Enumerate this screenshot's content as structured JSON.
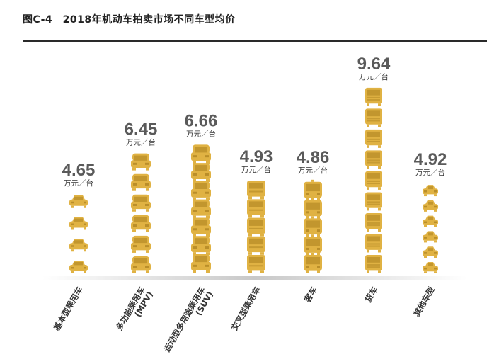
{
  "title": "图C-4　2018年机动车拍卖市场不同车型均价",
  "colors": {
    "icon": "#E0B243",
    "icon_dark": "#A97F1E",
    "value": "#5a5a5a",
    "baseline": "#c8c8c8"
  },
  "chart_data": {
    "type": "bar",
    "title": "图C-4　2018年机动车拍卖市场不同车型均价",
    "unit_label": "万元／台",
    "categories": [
      "基本型乘用车",
      "多功能乘用车(MPV)",
      "运动型多用途乘用车(SUV)",
      "交叉型乘用车",
      "客车",
      "货车",
      "其他车型"
    ],
    "category_lines": [
      [
        "基本型乘用车"
      ],
      [
        "多功能乘用车",
        "(MPV)"
      ],
      [
        "运动型多用途乘用车",
        "(SUV)"
      ],
      [
        "交叉型乘用车"
      ],
      [
        "客车"
      ],
      [
        "货车"
      ],
      [
        "其他车型"
      ]
    ],
    "value_labels": [
      "4.65",
      "6.45",
      "6.66",
      "4.93",
      "4.86",
      "9.64",
      "4.92"
    ],
    "values": [
      4.65,
      6.45,
      6.66,
      4.93,
      4.86,
      9.64,
      4.92
    ],
    "icon_types": [
      "sedan",
      "mpv",
      "suv",
      "van",
      "bus",
      "truck",
      "small-car"
    ],
    "icon_names": [
      "sedan-icon",
      "mpv-icon",
      "suv-icon",
      "van-icon",
      "bus-icon",
      "truck-icon",
      "small-car-icon"
    ],
    "icon_counts": [
      4,
      6,
      7,
      5,
      5,
      9,
      6
    ],
    "ylim": [
      0,
      10
    ],
    "grid": false
  }
}
